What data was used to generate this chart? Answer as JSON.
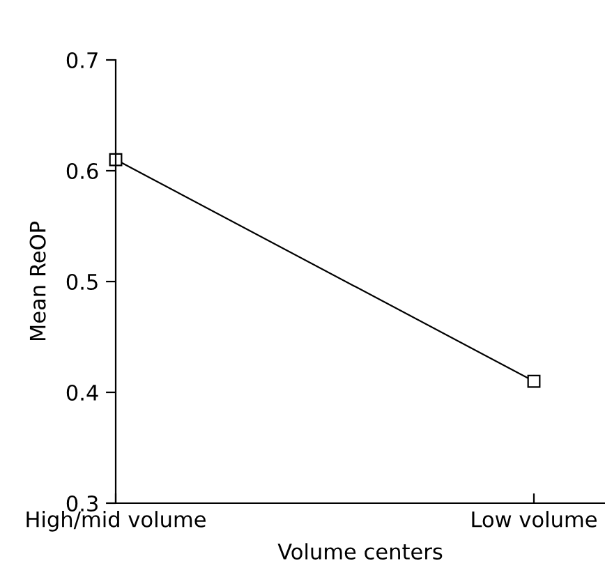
{
  "chart_data": {
    "type": "line",
    "xlabel": "Volume centers",
    "ylabel": "Mean ReOP",
    "categories": [
      "High/mid volume",
      "Low volume"
    ],
    "series": [
      {
        "color": "#000000",
        "values": [
          0.61,
          0.41
        ]
      }
    ],
    "ylim": [
      0.3,
      0.7
    ],
    "yticks": [
      0.3,
      0.4,
      0.5,
      0.6,
      0.7
    ],
    "marker": "square",
    "line_style": "solid",
    "grid": false,
    "legend": false
  }
}
